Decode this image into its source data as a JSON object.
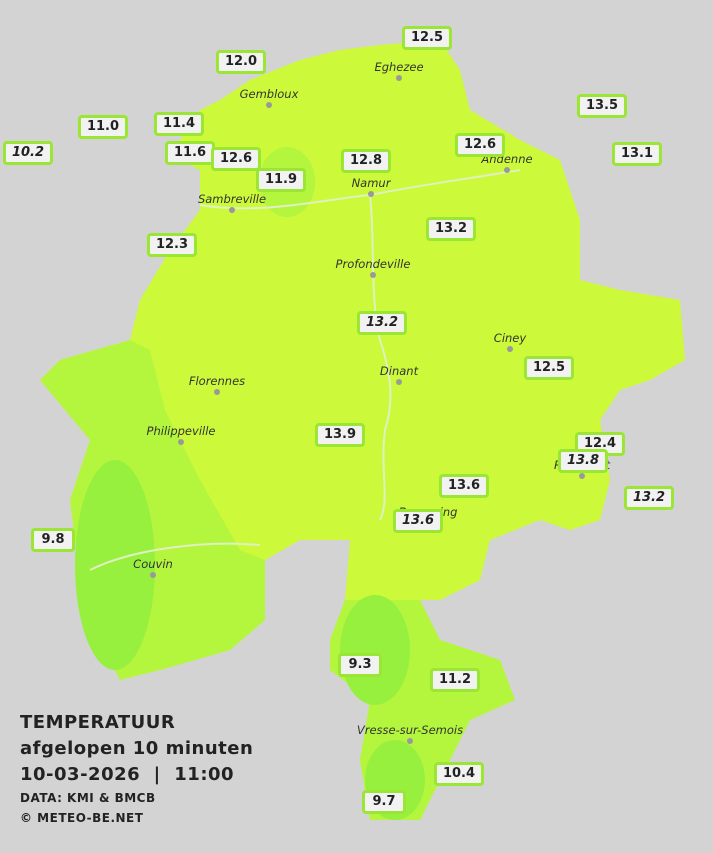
{
  "stations": [
    {
      "value": "12.5"
    },
    {
      "value": "12.0"
    },
    {
      "value": "11.0"
    },
    {
      "value": "11.4"
    },
    {
      "value": "10.2",
      "italic": true
    },
    {
      "value": "11.6"
    },
    {
      "value": "12.6"
    },
    {
      "value": "11.9"
    },
    {
      "value": "12.8"
    },
    {
      "value": "12.6"
    },
    {
      "value": "13.5"
    },
    {
      "value": "13.1"
    },
    {
      "value": "12.3"
    },
    {
      "value": "13.2"
    },
    {
      "value": "13.2",
      "italic": true
    },
    {
      "value": "12.5"
    },
    {
      "value": "13.9"
    },
    {
      "value": "12.4"
    },
    {
      "value": "13.8",
      "italic": true
    },
    {
      "value": "13.6"
    },
    {
      "value": "13.6",
      "italic": true
    },
    {
      "value": "13.2",
      "italic": true
    },
    {
      "value": "9.8"
    },
    {
      "value": "9.3"
    },
    {
      "value": "11.2"
    },
    {
      "value": "10.4"
    },
    {
      "value": "9.7"
    }
  ],
  "cities": [
    "Eghezee",
    "Gembloux",
    "Andenne",
    "Namur",
    "Sambreville",
    "Profondeville",
    "Ciney",
    "Dinant",
    "Florennes",
    "Philippeville",
    "Rochefort",
    "Beauraing",
    "Couvin",
    "Vresse-sur-Semois"
  ],
  "legend": {
    "title": "TEMPERATUUR",
    "subtitle": "afgelopen 10 minuten",
    "datetime": "10-03-2026  |  11:00",
    "source": "DATA: KMI & BMCB",
    "credit": "© METEO-BE.NET"
  }
}
